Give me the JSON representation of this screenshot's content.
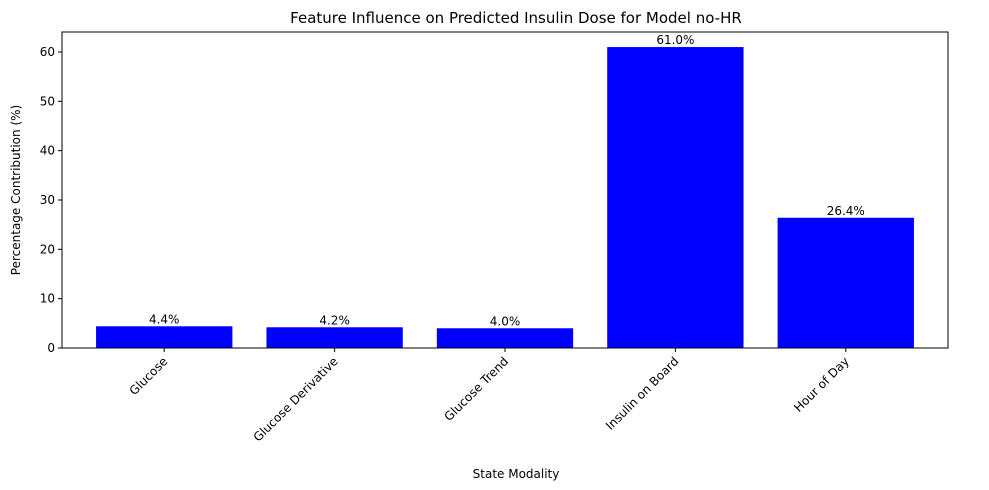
{
  "chart_data": {
    "type": "bar",
    "title": "Feature Influence on Predicted Insulin Dose for Model no-HR",
    "xlabel": "State Modality",
    "ylabel": "Percentage Contribution (%)",
    "categories": [
      "Glucose",
      "Glucose Derivative",
      "Glucose Trend",
      "Insulin on Board",
      "Hour of Day"
    ],
    "values": [
      4.4,
      4.2,
      4.0,
      61.0,
      26.4
    ],
    "data_labels": [
      "4.4%",
      "4.2%",
      "4.0%",
      "61.0%",
      "26.4%"
    ],
    "ylim": [
      0,
      64.05
    ],
    "yticks": [
      0,
      10,
      20,
      30,
      40,
      50,
      60
    ],
    "bar_color": "#0000ff",
    "grid": false,
    "legend": "none"
  }
}
